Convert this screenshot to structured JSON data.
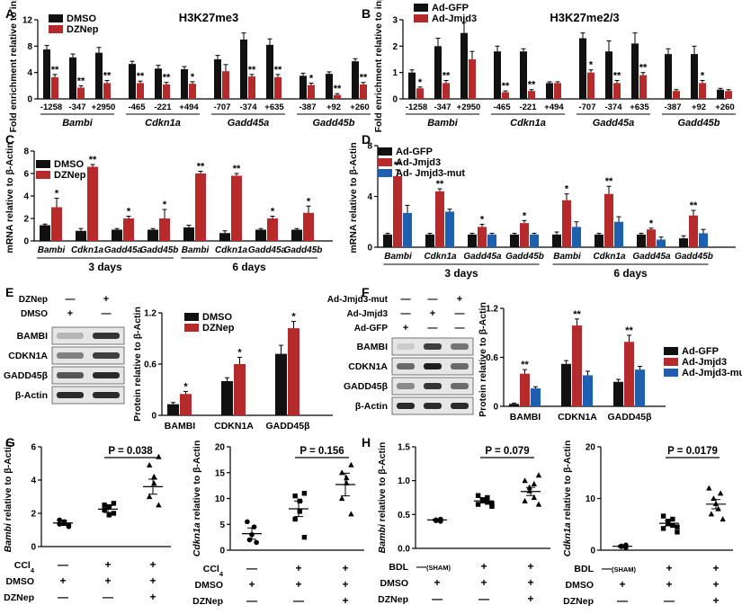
{
  "colors": {
    "black": "#111111",
    "red": "#b52a2a",
    "blue": "#1e5fb0",
    "gray": "#333333"
  },
  "panel_letters": [
    "A",
    "B",
    "C",
    "D",
    "E",
    "F",
    "G",
    "H"
  ],
  "chart_data": [
    {
      "id": "A",
      "type": "bar",
      "title": "H3K27me3",
      "ylabel": "Fold enrichment relative to input",
      "ylim": [
        0,
        12
      ],
      "yticks": [
        0,
        4,
        8,
        12
      ],
      "series_names": [
        "DMSO",
        "DZNep"
      ],
      "groups": [
        {
          "gene": "Bambi",
          "positions": [
            "-1258",
            "-347",
            "+2950"
          ]
        },
        {
          "gene": "Cdkn1a",
          "positions": [
            "-465",
            "-221",
            "+494"
          ]
        },
        {
          "gene": "Gadd45a",
          "positions": [
            "-707",
            "-374",
            "+635"
          ]
        },
        {
          "gene": "Gadd45b",
          "positions": [
            "-387",
            "+92",
            "+260"
          ]
        }
      ],
      "values": [
        [
          7.5,
          3.3
        ],
        [
          6.3,
          1.7
        ],
        [
          7.0,
          2.4
        ],
        [
          5.3,
          2.4
        ],
        [
          4.6,
          2.2
        ],
        [
          4.5,
          2.3
        ],
        [
          6.0,
          4.2
        ],
        [
          9.0,
          3.4
        ],
        [
          8.2,
          3.3
        ],
        [
          3.5,
          2.1
        ],
        [
          3.8,
          0.6
        ],
        [
          5.7,
          2.2
        ]
      ],
      "errors": [
        [
          0.6,
          0.4
        ],
        [
          0.5,
          0.3
        ],
        [
          0.8,
          0.4
        ],
        [
          0.4,
          0.3
        ],
        [
          0.5,
          0.3
        ],
        [
          0.4,
          0.3
        ],
        [
          0.6,
          1.0
        ],
        [
          1.0,
          0.3
        ],
        [
          0.9,
          0.4
        ],
        [
          0.4,
          0.3
        ],
        [
          0.3,
          0.2
        ],
        [
          0.4,
          0.3
        ]
      ],
      "sig": [
        [
          "",
          "**"
        ],
        [
          "",
          "**"
        ],
        [
          "",
          "**"
        ],
        [
          "",
          "**"
        ],
        [
          "",
          "**"
        ],
        [
          "",
          "*"
        ],
        [
          "",
          ""
        ],
        [
          "",
          "**"
        ],
        [
          "",
          "**"
        ],
        [
          "",
          "*"
        ],
        [
          "",
          "**"
        ],
        [
          "",
          "**"
        ]
      ]
    },
    {
      "id": "B",
      "type": "bar",
      "title": "H3K27me2/3",
      "ylabel": "Fold enrichment relative to input",
      "ylim": [
        0,
        3
      ],
      "yticks": [
        0,
        1,
        2,
        3
      ],
      "series_names": [
        "Ad-GFP",
        "Ad-Jmjd3"
      ],
      "groups": [
        {
          "gene": "Bambi",
          "positions": [
            "-1258",
            "-347",
            "+2950"
          ]
        },
        {
          "gene": "Cdkn1a",
          "positions": [
            "-465",
            "-221",
            "+494"
          ]
        },
        {
          "gene": "Gadd45a",
          "positions": [
            "-707",
            "-374",
            "+635"
          ]
        },
        {
          "gene": "Gadd45b",
          "positions": [
            "-387",
            "+92",
            "+260"
          ]
        }
      ],
      "values": [
        [
          1.0,
          0.4
        ],
        [
          2.0,
          0.6
        ],
        [
          2.5,
          1.5
        ],
        [
          1.8,
          0.25
        ],
        [
          1.8,
          0.3
        ],
        [
          0.6,
          0.6
        ],
        [
          2.3,
          1.0
        ],
        [
          1.8,
          0.6
        ],
        [
          2.1,
          0.9
        ],
        [
          1.7,
          0.3
        ],
        [
          1.7,
          0.6
        ],
        [
          0.35,
          0.3
        ]
      ],
      "errors": [
        [
          0.1,
          0.05
        ],
        [
          0.3,
          0.1
        ],
        [
          0.4,
          0.3
        ],
        [
          0.2,
          0.05
        ],
        [
          0.1,
          0.05
        ],
        [
          0.05,
          0.05
        ],
        [
          0.2,
          0.1
        ],
        [
          0.4,
          0.1
        ],
        [
          0.4,
          0.1
        ],
        [
          0.2,
          0.05
        ],
        [
          0.3,
          0.1
        ],
        [
          0.05,
          0.05
        ]
      ],
      "sig": [
        [
          "",
          "*"
        ],
        [
          "",
          "**"
        ],
        [
          "",
          ""
        ],
        [
          "",
          "**"
        ],
        [
          "",
          "**"
        ],
        [
          "",
          ""
        ],
        [
          "",
          "*"
        ],
        [
          "",
          "**"
        ],
        [
          "",
          "**"
        ],
        [
          "",
          ""
        ],
        [
          "",
          "*"
        ],
        [
          "",
          ""
        ]
      ]
    },
    {
      "id": "C",
      "type": "bar",
      "title": "",
      "ylabel": "mRNA relative to β-Actin",
      "ylim": [
        0,
        8
      ],
      "yticks": [
        0,
        2,
        4,
        6,
        8
      ],
      "series_names": [
        "DMSO",
        "DZNep"
      ],
      "categories": [
        "Bambi",
        "Cdkn1a",
        "Gadd45a",
        "Gadd45b",
        "Bambi",
        "Cdkn1a",
        "Gadd45a",
        "Gadd45b"
      ],
      "timepoints": [
        "3 days",
        "6 days"
      ],
      "values": [
        [
          1.4,
          3.0
        ],
        [
          0.9,
          6.6
        ],
        [
          1.0,
          2.0
        ],
        [
          1.0,
          2.0
        ],
        [
          1.2,
          6.0
        ],
        [
          0.7,
          5.8
        ],
        [
          1.0,
          2.0
        ],
        [
          1.0,
          2.5
        ]
      ],
      "errors": [
        [
          0.1,
          0.8
        ],
        [
          0.2,
          0.2
        ],
        [
          0.1,
          0.2
        ],
        [
          0.1,
          0.8
        ],
        [
          0.2,
          0.2
        ],
        [
          0.2,
          0.2
        ],
        [
          0.1,
          0.2
        ],
        [
          0.1,
          0.6
        ]
      ],
      "sig": [
        [
          "",
          "*"
        ],
        [
          "",
          "**"
        ],
        [
          "",
          "*"
        ],
        [
          "",
          "*"
        ],
        [
          "",
          "**"
        ],
        [
          "",
          "**"
        ],
        [
          "",
          "*"
        ],
        [
          "",
          "*"
        ]
      ]
    },
    {
      "id": "D",
      "type": "bar",
      "title": "",
      "ylabel": "mRNA relative to β-Actin",
      "ylim": [
        0,
        8
      ],
      "yticks": [
        0,
        4,
        8
      ],
      "series_names": [
        "Ad-GFP",
        "Ad-Jmjd3",
        "Ad- Jmjd3-mut"
      ],
      "categories": [
        "Bambi",
        "Cdkn1a",
        "Gadd45a",
        "Gadd45b",
        "Bambi",
        "Cdkn1a",
        "Gadd45a",
        "Gadd45b"
      ],
      "timepoints": [
        "3 days",
        "6 days"
      ],
      "values": [
        [
          1.0,
          5.6,
          2.7
        ],
        [
          1.0,
          4.4,
          2.8
        ],
        [
          1.0,
          1.6,
          1.0
        ],
        [
          1.0,
          1.9,
          1.0
        ],
        [
          1.0,
          3.7,
          1.6
        ],
        [
          1.0,
          4.2,
          2.0
        ],
        [
          1.0,
          1.4,
          0.6
        ],
        [
          0.7,
          2.5,
          1.1
        ]
      ],
      "errors": [
        [
          0.1,
          0.5,
          0.6
        ],
        [
          0.1,
          0.2,
          0.2
        ],
        [
          0.1,
          0.2,
          0.1
        ],
        [
          0.1,
          0.2,
          0.1
        ],
        [
          0.2,
          0.5,
          0.4
        ],
        [
          0.1,
          0.6,
          0.4
        ],
        [
          0.1,
          0.1,
          0.2
        ],
        [
          0.2,
          0.4,
          0.3
        ]
      ],
      "sig": [
        [
          "",
          "**",
          ""
        ],
        [
          "",
          "**",
          ""
        ],
        [
          "",
          "*",
          ""
        ],
        [
          "",
          "*",
          ""
        ],
        [
          "",
          "*",
          ""
        ],
        [
          "",
          "**",
          ""
        ],
        [
          "",
          "*",
          ""
        ],
        [
          "",
          "**",
          ""
        ]
      ]
    },
    {
      "id": "E",
      "type": "bar",
      "title": "",
      "ylabel": "Protein relative to β-Actin",
      "ylim": [
        0,
        1.2
      ],
      "yticks": [
        "0",
        "0.6",
        "1.2"
      ],
      "series_names": [
        "DMSO",
        "DZNep"
      ],
      "categories": [
        "BAMBI",
        "CDKN1A",
        "GADD45β"
      ],
      "values": [
        [
          0.13,
          0.25
        ],
        [
          0.4,
          0.6
        ],
        [
          0.72,
          1.02
        ]
      ],
      "errors": [
        [
          0.02,
          0.03
        ],
        [
          0.04,
          0.08
        ],
        [
          0.1,
          0.08
        ]
      ],
      "sig": [
        [
          "",
          "*"
        ],
        [
          "",
          "*"
        ],
        [
          "",
          "*"
        ]
      ]
    },
    {
      "id": "F",
      "type": "bar",
      "title": "",
      "ylabel": "Protein relative to β-Actin",
      "ylim": [
        0,
        1.2
      ],
      "yticks": [
        "0",
        "0.6",
        "1.2"
      ],
      "series_names": [
        "Ad-GFP",
        "Ad-Jmjd3",
        "Ad-Jmjd3-mut"
      ],
      "categories": [
        "BAMBI",
        "CDKN1A",
        "GADD45β"
      ],
      "values": [
        [
          0.03,
          0.4,
          0.22
        ],
        [
          0.52,
          0.99,
          0.38
        ],
        [
          0.3,
          0.79,
          0.45
        ]
      ],
      "errors": [
        [
          0.01,
          0.05,
          0.02
        ],
        [
          0.04,
          0.08,
          0.05
        ],
        [
          0.03,
          0.08,
          0.04
        ]
      ],
      "sig": [
        [
          "",
          "**",
          ""
        ],
        [
          "",
          "**",
          ""
        ],
        [
          "",
          "**",
          ""
        ]
      ]
    },
    {
      "id": "G1",
      "type": "scatter",
      "title": "",
      "ylabel_gene": "Bambi",
      "ylabel_rest": " relative to β-Actin",
      "ylim": [
        0,
        6
      ],
      "yticks": [
        0,
        2,
        4,
        6
      ],
      "pvalue": "P = 0.038",
      "groups": [
        {
          "marker": "circle",
          "points": [
            1.2,
            1.35,
            1.5,
            1.4,
            1.6,
            1.3
          ],
          "mean": 1.42,
          "sem": 0.15
        },
        {
          "marker": "square",
          "points": [
            2.0,
            2.2,
            2.4,
            1.9,
            2.5,
            2.6
          ],
          "mean": 2.25,
          "sem": 0.2
        },
        {
          "marker": "triangle",
          "points": [
            2.5,
            3.0,
            3.8,
            4.2,
            4.9,
            5.4
          ],
          "mean": 3.6,
          "sem": 0.45
        }
      ],
      "rows": [
        {
          "label": "CCl",
          "label_sub": "4",
          "marks": [
            "—",
            "+",
            "+"
          ]
        },
        {
          "label": "DMSO",
          "label_sub": "",
          "marks": [
            "+",
            "+",
            "+"
          ]
        },
        {
          "label": "DZNep",
          "label_sub": "",
          "marks": [
            "—",
            "—",
            "+"
          ]
        }
      ]
    },
    {
      "id": "G2",
      "type": "scatter",
      "title": "",
      "ylabel_gene": "Cdkn1a",
      "ylabel_rest": " relative to β-Actin",
      "ylim": [
        0,
        20
      ],
      "yticks": [
        0,
        5,
        10,
        15,
        20
      ],
      "pvalue": "P = 0.156",
      "groups": [
        {
          "marker": "circle",
          "points": [
            1.5,
            2.0,
            3.0,
            4.5,
            5.5
          ],
          "mean": 3.2,
          "sem": 1.1
        },
        {
          "marker": "square",
          "points": [
            2.5,
            6.0,
            7.5,
            9.5,
            10.5,
            11.0
          ],
          "mean": 8.0,
          "sem": 1.5
        },
        {
          "marker": "triangle",
          "points": [
            7.0,
            10.0,
            13.0,
            14.0,
            15.0,
            16.5
          ],
          "mean": 12.7,
          "sem": 2.2
        }
      ],
      "rows": [
        {
          "label": "CCl",
          "label_sub": "4",
          "marks": [
            "—",
            "+",
            "+"
          ]
        },
        {
          "label": "DMSO",
          "label_sub": "",
          "marks": [
            "+",
            "+",
            "+"
          ]
        },
        {
          "label": "DZNep",
          "label_sub": "",
          "marks": [
            "—",
            "—",
            "+"
          ]
        }
      ]
    },
    {
      "id": "H1",
      "type": "scatter",
      "title": "",
      "ylabel_gene": "Bambi",
      "ylabel_rest": " relative to β-Actin",
      "ylim": [
        0,
        1.5
      ],
      "yticks": [
        "0.0",
        "0.5",
        "1.0",
        "1.5"
      ],
      "pvalue": "P = 0.079",
      "groups": [
        {
          "marker": "circle",
          "points": [
            0.4,
            0.41,
            0.42,
            0.43
          ],
          "mean": 0.42,
          "sem": 0.01
        },
        {
          "marker": "square",
          "points": [
            0.62,
            0.65,
            0.68,
            0.7,
            0.72,
            0.75,
            0.78,
            0.66
          ],
          "mean": 0.7,
          "sem": 0.03
        },
        {
          "marker": "triangle",
          "points": [
            0.65,
            0.7,
            0.75,
            0.85,
            0.9,
            0.95,
            1.0,
            1.08
          ],
          "mean": 0.84,
          "sem": 0.06
        }
      ],
      "rows": [
        {
          "label": "BDL",
          "label_sub": "",
          "marks": [
            "—(SHAM)",
            "+",
            "+"
          ]
        },
        {
          "label": "DMSO",
          "label_sub": "",
          "marks": [
            "+",
            "+",
            "+"
          ]
        },
        {
          "label": "DZNep",
          "label_sub": "",
          "marks": [
            "—",
            "—",
            "+"
          ]
        }
      ]
    },
    {
      "id": "H2",
      "type": "scatter",
      "title": "",
      "ylabel_gene": "Cdkn1a",
      "ylabel_rest": " relative to β-Actin",
      "ylim": [
        0,
        20
      ],
      "yticks": [
        0,
        10,
        20
      ],
      "pvalue": "P = 0.0179",
      "groups": [
        {
          "marker": "circle",
          "points": [
            0.5,
            0.7,
            0.8,
            1.0
          ],
          "mean": 0.75,
          "sem": 0.15
        },
        {
          "marker": "square",
          "points": [
            3.5,
            4.2,
            4.8,
            5.2,
            5.6,
            6.0,
            6.6,
            4.5
          ],
          "mean": 5.2,
          "sem": 0.5
        },
        {
          "marker": "triangle",
          "points": [
            6.0,
            7.0,
            8.0,
            9.0,
            10.0,
            11.0,
            12.0
          ],
          "mean": 8.9,
          "sem": 0.9
        }
      ],
      "rows": [
        {
          "label": "BDL",
          "label_sub": "",
          "marks": [
            "—(SHAM)",
            "+",
            "+"
          ]
        },
        {
          "label": "DMSO",
          "label_sub": "",
          "marks": [
            "+",
            "+",
            "+"
          ]
        },
        {
          "label": "DZNep",
          "label_sub": "",
          "marks": [
            "—",
            "—",
            "+"
          ]
        }
      ]
    }
  ],
  "blots": {
    "E": {
      "rows": [
        {
          "label": "DZNep",
          "marks": [
            "—",
            "+"
          ]
        },
        {
          "label": "DMSO",
          "marks": [
            "+",
            "—"
          ]
        }
      ],
      "bands": [
        {
          "label": "BAMBI",
          "intensity": [
            0.25,
            0.85
          ]
        },
        {
          "label": "CDKN1A",
          "intensity": [
            0.5,
            0.8
          ]
        },
        {
          "label": "GADD45β",
          "intensity": [
            0.7,
            0.9
          ]
        },
        {
          "label": "β-Actin",
          "intensity": [
            0.9,
            0.9
          ]
        }
      ]
    },
    "F": {
      "rows": [
        {
          "label": "Ad-Jmjd3-mut",
          "marks": [
            "—",
            "—",
            "+"
          ]
        },
        {
          "label": "Ad-Jmjd3",
          "marks": [
            "—",
            "+",
            "—"
          ]
        },
        {
          "label": "Ad-GFP",
          "marks": [
            "+",
            "—",
            "—"
          ]
        }
      ],
      "bands": [
        {
          "label": "BAMBI",
          "intensity": [
            0.15,
            0.8,
            0.55
          ]
        },
        {
          "label": "CDKN1A",
          "intensity": [
            0.6,
            0.95,
            0.6
          ]
        },
        {
          "label": "GADD45β",
          "intensity": [
            0.45,
            0.85,
            0.6
          ]
        },
        {
          "label": "β-Actin",
          "intensity": [
            0.9,
            0.9,
            0.9
          ]
        }
      ]
    }
  }
}
